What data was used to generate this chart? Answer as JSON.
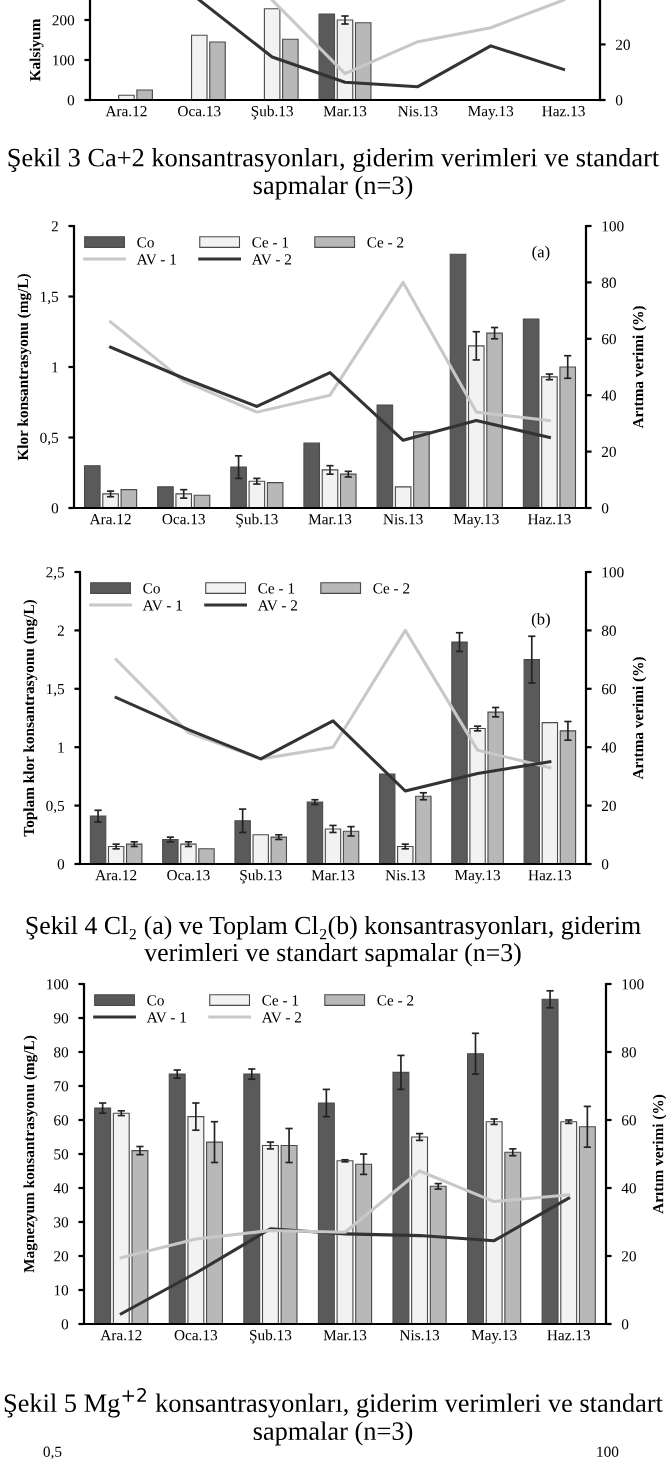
{
  "chart_data": [
    {
      "type": "bar",
      "categories": [
        "Ara.12",
        "Oca.13",
        "Şub.13",
        "Mar.13",
        "Nis.13",
        "May.13",
        "Haz.13"
      ],
      "ylabel": "Kalsiyum",
      "ylim": [
        0,
        250
      ],
      "yticks": [
        0,
        100,
        200
      ],
      "y2lim": [
        0,
        36
      ],
      "y2ticks": [
        0,
        20
      ],
      "grid": false,
      "legend": false,
      "series": [
        {
          "color": "#5a5a5a",
          "values": [
            null,
            null,
            null,
            215,
            null,
            null,
            null
          ]
        },
        {
          "color": "#f2f2f2",
          "values": [
            12,
            162,
            228,
            200,
            null,
            null,
            null
          ],
          "errors": [
            null,
            null,
            null,
            10,
            null,
            null,
            null
          ]
        },
        {
          "color": "#b8b8b8",
          "values": [
            25,
            145,
            152,
            193,
            null,
            null,
            null
          ]
        },
        {
          "type": "line",
          "axis": "y2",
          "color": "#c8c8c8",
          "values": [
            null,
            null,
            36,
            9.5,
            21,
            26,
            36
          ]
        },
        {
          "type": "line",
          "axis": "y2",
          "color": "#333333",
          "values": [
            null,
            36,
            15.5,
            6.4,
            4.8,
            19.5,
            11
          ]
        }
      ],
      "annotations": [
        "Şekil 3 Ca+2 konsantrasyonları, giderim verimleri ve standart sapmalar (n=3)"
      ]
    },
    {
      "type": "bar",
      "categories": [
        "Ara.12",
        "Oca.13",
        "Şub.13",
        "Mar.13",
        "Nis.13",
        "May.13",
        "Haz.13"
      ],
      "ylabel": "Klor konsantrasyonu (mg/L)",
      "y2label": "Arıtma verimi (%)",
      "ylim": [
        0,
        2
      ],
      "yticks": [
        0,
        {
          "value": 0.5,
          "label": "0,5"
        },
        1,
        {
          "value": 1.5,
          "label": "1,5"
        },
        2
      ],
      "y2lim": [
        0,
        100
      ],
      "y2ticks": [
        0,
        20,
        40,
        60,
        80,
        100
      ],
      "grid": false,
      "legend": "top left",
      "series": [
        {
          "name": "Co",
          "color": "#5a5a5a",
          "values": [
            0.3,
            0.15,
            0.29,
            0.46,
            0.73,
            1.8,
            1.34
          ],
          "errors": [
            null,
            null,
            0.08,
            null,
            null,
            null,
            null
          ]
        },
        {
          "name": "Ce - 1",
          "color": "#f2f2f2",
          "values": [
            0.1,
            0.1,
            0.19,
            0.27,
            0.15,
            1.15,
            0.93
          ],
          "errors": [
            0.02,
            0.03,
            0.02,
            0.03,
            null,
            0.1,
            0.02
          ]
        },
        {
          "name": "Ce - 2",
          "color": "#b8b8b8",
          "values": [
            0.13,
            0.09,
            0.18,
            0.24,
            0.54,
            1.24,
            1.0
          ],
          "errors": [
            null,
            null,
            null,
            0.02,
            null,
            0.04,
            0.08
          ]
        },
        {
          "name": "AV - 1",
          "type": "line",
          "axis": "y2",
          "color": "#c8c8c8",
          "values": [
            66,
            45,
            34,
            40,
            80,
            34,
            31
          ]
        },
        {
          "name": "AV - 2",
          "type": "line",
          "axis": "y2",
          "color": "#333333",
          "values": [
            57,
            46,
            36,
            48,
            24,
            31,
            25
          ]
        }
      ],
      "annotations": [
        "(a)"
      ]
    },
    {
      "type": "bar",
      "categories": [
        "Ara.12",
        "Oca.13",
        "Şub.13",
        "Mar.13",
        "Nis.13",
        "May.13",
        "Haz.13"
      ],
      "ylabel": "Toplam klor konsantrasyonu (mg/L)",
      "y2label": "Arıtma verimi (%)",
      "ylim": [
        0,
        2.5
      ],
      "yticks": [
        0,
        {
          "value": 0.5,
          "label": "0,5"
        },
        1,
        {
          "value": 1.5,
          "label": "1,5"
        },
        2,
        {
          "value": 2.5,
          "label": "2,5"
        }
      ],
      "y2lim": [
        0,
        100
      ],
      "y2ticks": [
        0,
        20,
        40,
        60,
        80,
        100
      ],
      "grid": false,
      "legend": "top left",
      "series": [
        {
          "name": "Co",
          "color": "#5a5a5a",
          "values": [
            0.41,
            0.21,
            0.37,
            0.53,
            0.77,
            1.9,
            1.75
          ],
          "errors": [
            0.05,
            0.02,
            0.1,
            0.02,
            null,
            0.08,
            0.2
          ]
        },
        {
          "name": "Ce - 1",
          "color": "#f2f2f2",
          "values": [
            0.15,
            0.17,
            0.25,
            0.3,
            0.15,
            1.16,
            1.21
          ],
          "errors": [
            0.02,
            0.02,
            null,
            0.03,
            0.02,
            0.02,
            null
          ]
        },
        {
          "name": "Ce - 2",
          "color": "#b8b8b8",
          "values": [
            0.17,
            0.13,
            0.23,
            0.28,
            0.58,
            1.3,
            1.14
          ],
          "errors": [
            0.02,
            null,
            0.02,
            0.04,
            0.03,
            0.04,
            0.08
          ]
        },
        {
          "name": "AV - 1",
          "type": "line",
          "axis": "y2",
          "color": "#c8c8c8",
          "values": [
            70,
            45,
            36,
            40,
            80,
            39,
            33
          ]
        },
        {
          "name": "AV - 2",
          "type": "line",
          "axis": "y2",
          "color": "#333333",
          "values": [
            57,
            46,
            36,
            49,
            25,
            31,
            35
          ]
        }
      ],
      "annotations": [
        "(b)",
        "Şekil 4 Cl₂ (a) ve Toplam Cl₂(b) konsantrasyonları, giderim verimleri ve standart sapmalar (n=3)"
      ]
    },
    {
      "type": "bar",
      "categories": [
        "Ara.12",
        "Oca.13",
        "Şub.13",
        "Mar.13",
        "Nis.13",
        "May.13",
        "Haz.13"
      ],
      "ylabel": "Magnezyum konsantrasyonu (mg/L)",
      "y2label": "Arıtım verimi (%)",
      "ylim": [
        0,
        100
      ],
      "yticks": [
        0,
        10,
        20,
        30,
        40,
        50,
        60,
        70,
        80,
        90,
        100
      ],
      "y2lim": [
        0,
        100
      ],
      "y2ticks": [
        0,
        20,
        40,
        60,
        80,
        100
      ],
      "grid": false,
      "legend": "top left",
      "series": [
        {
          "name": "Co",
          "color": "#5a5a5a",
          "values": [
            63.5,
            73.5,
            73.5,
            65,
            74,
            79.5,
            95.5
          ],
          "errors": [
            1.5,
            1.2,
            1.5,
            4,
            5,
            6,
            2.5
          ]
        },
        {
          "name": "Ce - 1",
          "color": "#f2f2f2",
          "values": [
            62,
            61,
            52.5,
            48,
            55,
            59.5,
            59.5
          ],
          "errors": [
            0.7,
            4,
            1,
            0.3,
            1,
            0.8,
            0.5
          ]
        },
        {
          "name": "Ce - 2",
          "color": "#b8b8b8",
          "values": [
            51,
            53.5,
            52.5,
            47,
            40.5,
            50.5,
            58
          ],
          "errors": [
            1.2,
            6,
            5,
            3,
            0.8,
            1,
            6
          ]
        },
        {
          "name": "AV - 1",
          "type": "line",
          "axis": "y2",
          "color": "#333333",
          "values": [
            3,
            15,
            28,
            26.5,
            26,
            24.5,
            37
          ]
        },
        {
          "name": "AV - 2",
          "type": "line",
          "axis": "y2",
          "color": "#c8c8c8",
          "values": [
            19.5,
            25,
            27.5,
            27,
            45,
            36,
            38
          ]
        }
      ],
      "annotations": [
        "Şekil 5 Mg$^{+2}$ konsantrasyonları, giderim verimleri ve standart sapmalar (n=3)"
      ]
    },
    {
      "type": "other",
      "annotations": [
        "0,5",
        "100"
      ]
    }
  ]
}
